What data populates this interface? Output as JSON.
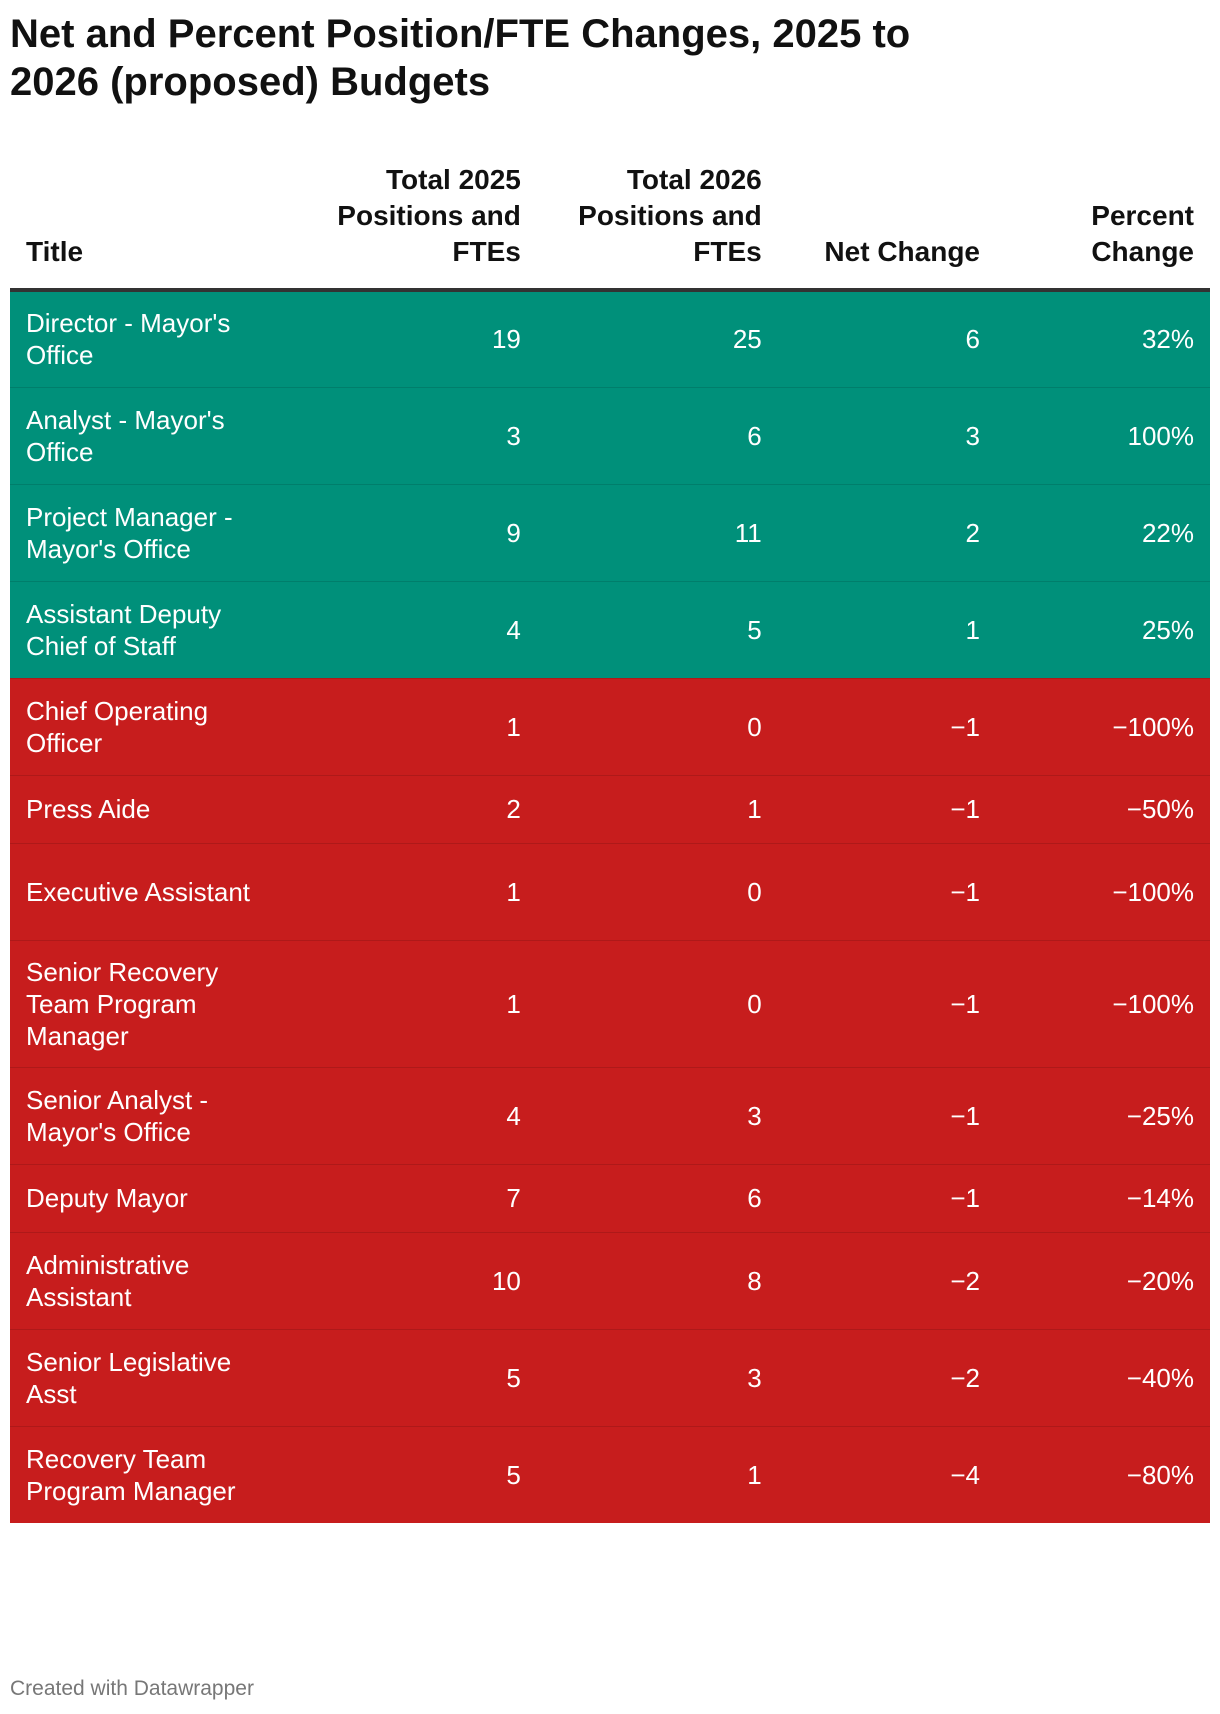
{
  "chart_data": {
    "type": "table",
    "title": "Net and Percent Position/FTE Changes, 2025 to 2026 (proposed) Budgets",
    "columns": [
      {
        "key": "title",
        "label": "Title"
      },
      {
        "key": "total_2025",
        "label": "Total 2025 Positions and FTEs"
      },
      {
        "key": "total_2026",
        "label": "Total 2026 Positions and FTEs"
      },
      {
        "key": "net_change",
        "label": "Net Change"
      },
      {
        "key": "percent_change",
        "label": "Percent Change"
      }
    ],
    "rows": [
      {
        "title": "Director - Mayor's Office",
        "total_2025": "19",
        "total_2026": "25",
        "net_change": "6",
        "percent_change": "32%"
      },
      {
        "title": "Analyst - Mayor's Office",
        "total_2025": "3",
        "total_2026": "6",
        "net_change": "3",
        "percent_change": "100%"
      },
      {
        "title": "Project Manager - Mayor's Office",
        "total_2025": "9",
        "total_2026": "11",
        "net_change": "2",
        "percent_change": "22%"
      },
      {
        "title": "Assistant Deputy Chief of Staff",
        "total_2025": "4",
        "total_2026": "5",
        "net_change": "1",
        "percent_change": "25%"
      },
      {
        "title": "Chief Operating Officer",
        "total_2025": "1",
        "total_2026": "0",
        "net_change": "−1",
        "percent_change": "−100%"
      },
      {
        "title": "Press Aide",
        "total_2025": "2",
        "total_2026": "1",
        "net_change": "−1",
        "percent_change": "−50%"
      },
      {
        "title": "Executive Assistant",
        "total_2025": "1",
        "total_2026": "0",
        "net_change": "−1",
        "percent_change": "−100%"
      },
      {
        "title": "Senior Recovery Team Program Manager",
        "total_2025": "1",
        "total_2026": "0",
        "net_change": "−1",
        "percent_change": "−100%"
      },
      {
        "title": "Senior Analyst - Mayor's Office",
        "total_2025": "4",
        "total_2026": "3",
        "net_change": "−1",
        "percent_change": "−25%"
      },
      {
        "title": "Deputy Mayor",
        "total_2025": "7",
        "total_2026": "6",
        "net_change": "−1",
        "percent_change": "−14%"
      },
      {
        "title": "Administrative Assistant",
        "total_2025": "10",
        "total_2026": "8",
        "net_change": "−2",
        "percent_change": "−20%"
      },
      {
        "title": "Senior Legislative Asst",
        "total_2025": "5",
        "total_2026": "3",
        "net_change": "−2",
        "percent_change": "−40%"
      },
      {
        "title": "Recovery Team Program Manager",
        "total_2025": "5",
        "total_2026": "1",
        "net_change": "−4",
        "percent_change": "−80%"
      }
    ],
    "colors": {
      "increase": "#00907a",
      "decrease": "#c71d1d"
    }
  },
  "footer": {
    "credit": "Created with Datawrapper"
  }
}
